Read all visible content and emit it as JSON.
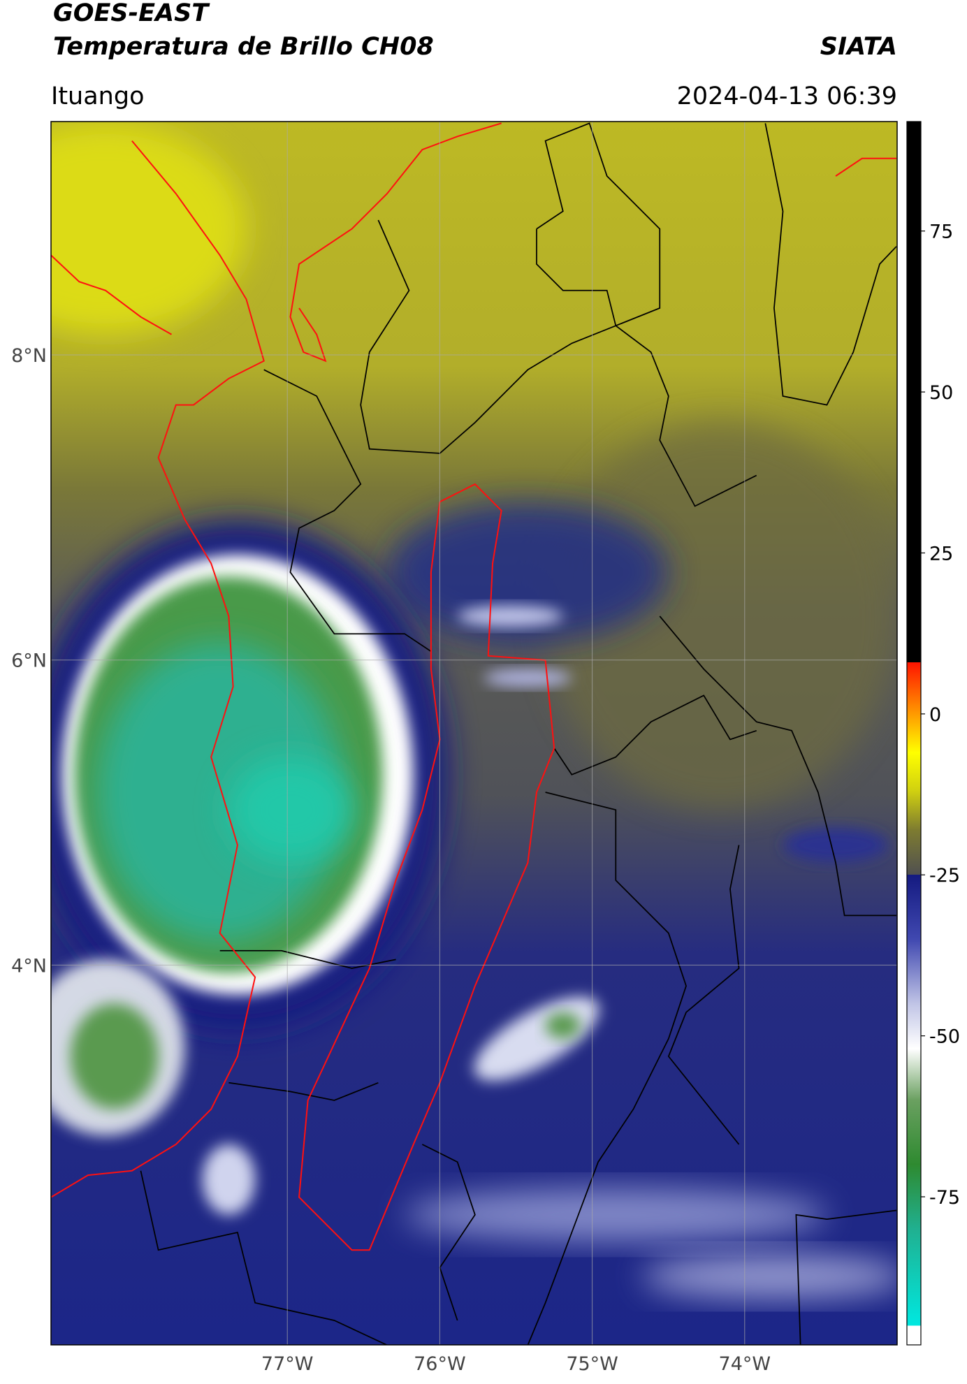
{
  "map": {
    "type": "satellite-map",
    "title": "GOES-EAST",
    "subtitle": "Temperatura de Brillo CH08",
    "source": "SIATA",
    "region": "Ituango",
    "datetime": "2024-04-13 06:39",
    "xlim": [
      -78.55,
      -73.0
    ],
    "ylim": [
      1.51,
      9.53
    ],
    "xticks": [
      {
        "value": -77,
        "label": "77°W"
      },
      {
        "value": -76,
        "label": "76°W"
      },
      {
        "value": -75,
        "label": "75°W"
      },
      {
        "value": -74,
        "label": "74°W"
      }
    ],
    "yticks": [
      {
        "value": 8,
        "label": "8°N"
      },
      {
        "value": 6,
        "label": "6°N"
      },
      {
        "value": 4,
        "label": "4°N"
      }
    ],
    "grid": true,
    "colorbar": {
      "lim": [
        -98,
        92
      ],
      "ticks": [
        75,
        50,
        25,
        0,
        -25,
        -50,
        -75
      ],
      "stops": [
        [
          -98,
          "#ffffff"
        ],
        [
          -95,
          "#ffffff"
        ],
        [
          -95,
          "#00e8e0"
        ],
        [
          -80,
          "#20b090"
        ],
        [
          -70,
          "#2e8a30"
        ],
        [
          -60,
          "#6aa060"
        ],
        [
          -52,
          "#ffffff"
        ],
        [
          -45,
          "#c0c4e6"
        ],
        [
          -35,
          "#4048b0"
        ],
        [
          -25,
          "#141a80"
        ],
        [
          -25,
          "#505050"
        ],
        [
          -18,
          "#7e7c30"
        ],
        [
          -12,
          "#d0d010"
        ],
        [
          -6,
          "#ffff00"
        ],
        [
          0,
          "#ff9a00"
        ],
        [
          8,
          "#ff1400"
        ],
        [
          8,
          "#000000"
        ],
        [
          92,
          "#000000"
        ]
      ]
    }
  }
}
